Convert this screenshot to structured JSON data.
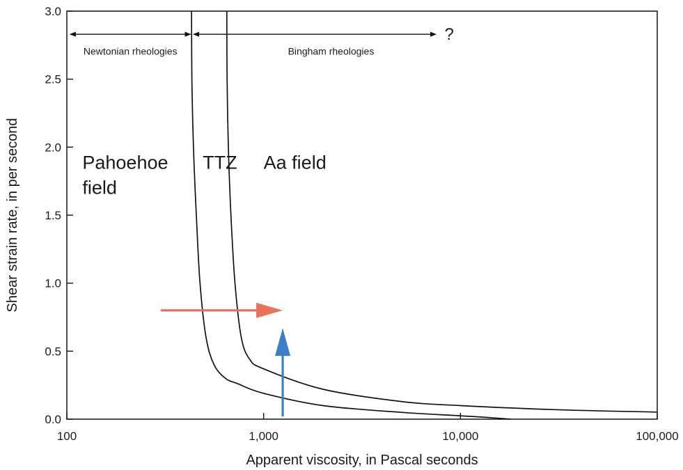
{
  "chart_data": {
    "type": "line",
    "title": "",
    "xlabel": "Apparent viscosity, in Pascal seconds",
    "ylabel": "Shear strain rate, in per second",
    "x_scale": "log",
    "xlim": [
      100,
      100000
    ],
    "ylim": [
      0,
      3.0
    ],
    "x_ticks": [
      {
        "value": 100,
        "label": "100"
      },
      {
        "value": 1000,
        "label": "1,000"
      },
      {
        "value": 10000,
        "label": "10,000"
      },
      {
        "value": 100000,
        "label": "100,000"
      }
    ],
    "y_ticks": [
      {
        "value": 0.0,
        "label": "0.0"
      },
      {
        "value": 0.5,
        "label": "0.5"
      },
      {
        "value": 1.0,
        "label": "1.0"
      },
      {
        "value": 1.5,
        "label": "1.5"
      },
      {
        "value": 2.0,
        "label": "2.0"
      },
      {
        "value": 2.5,
        "label": "2.5"
      },
      {
        "value": 3.0,
        "label": "3.0"
      }
    ],
    "grid": false,
    "series": [
      {
        "color": "#111111",
        "points": [
          [
            430,
            3.0
          ],
          [
            432,
            2.5
          ],
          [
            440,
            2.0
          ],
          [
            455,
            1.5
          ],
          [
            475,
            1.0
          ],
          [
            510,
            0.6
          ],
          [
            560,
            0.4
          ],
          [
            640,
            0.3
          ],
          [
            740,
            0.26
          ],
          [
            1000,
            0.19
          ],
          [
            2000,
            0.1
          ],
          [
            5000,
            0.05
          ],
          [
            10000,
            0.025
          ],
          [
            14000,
            0.012
          ],
          [
            18000,
            0.0
          ]
        ]
      },
      {
        "color": "#111111",
        "points": [
          [
            650,
            3.0
          ],
          [
            652,
            2.5
          ],
          [
            662,
            2.0
          ],
          [
            682,
            1.5
          ],
          [
            715,
            1.0
          ],
          [
            770,
            0.6
          ],
          [
            850,
            0.44
          ],
          [
            1000,
            0.37
          ],
          [
            2000,
            0.22
          ],
          [
            5000,
            0.13
          ],
          [
            10000,
            0.1
          ],
          [
            30000,
            0.07
          ],
          [
            100000,
            0.052
          ]
        ]
      }
    ],
    "annotations": {
      "regions": [
        {
          "lines": [
            "Pahoehoe",
            "field"
          ],
          "x": 120,
          "y": 1.84
        },
        {
          "lines": [
            "TTZ"
          ],
          "x": 490,
          "y": 1.84
        },
        {
          "lines": [
            "Aa field"
          ],
          "x": 1000,
          "y": 1.84
        }
      ],
      "rheology_arrows": [
        {
          "label": "Newtonian rheologies",
          "x_from": 104,
          "x_to": 425,
          "y": 2.83,
          "label_y": 2.68
        },
        {
          "label": "Bingham rheologies",
          "x_from": 440,
          "x_to": 7500,
          "y": 2.83,
          "label_y": 2.68
        }
      ],
      "question_mark": {
        "text": "?",
        "x": 8300,
        "y": 2.83
      },
      "red_arrow": {
        "color": "#e8735a",
        "from": [
          300,
          0.8
        ],
        "to": [
          1250,
          0.8
        ]
      },
      "blue_arrow": {
        "color": "#3a7fc8",
        "from": [
          1250,
          0.02
        ],
        "to": [
          1250,
          0.67
        ]
      }
    }
  }
}
